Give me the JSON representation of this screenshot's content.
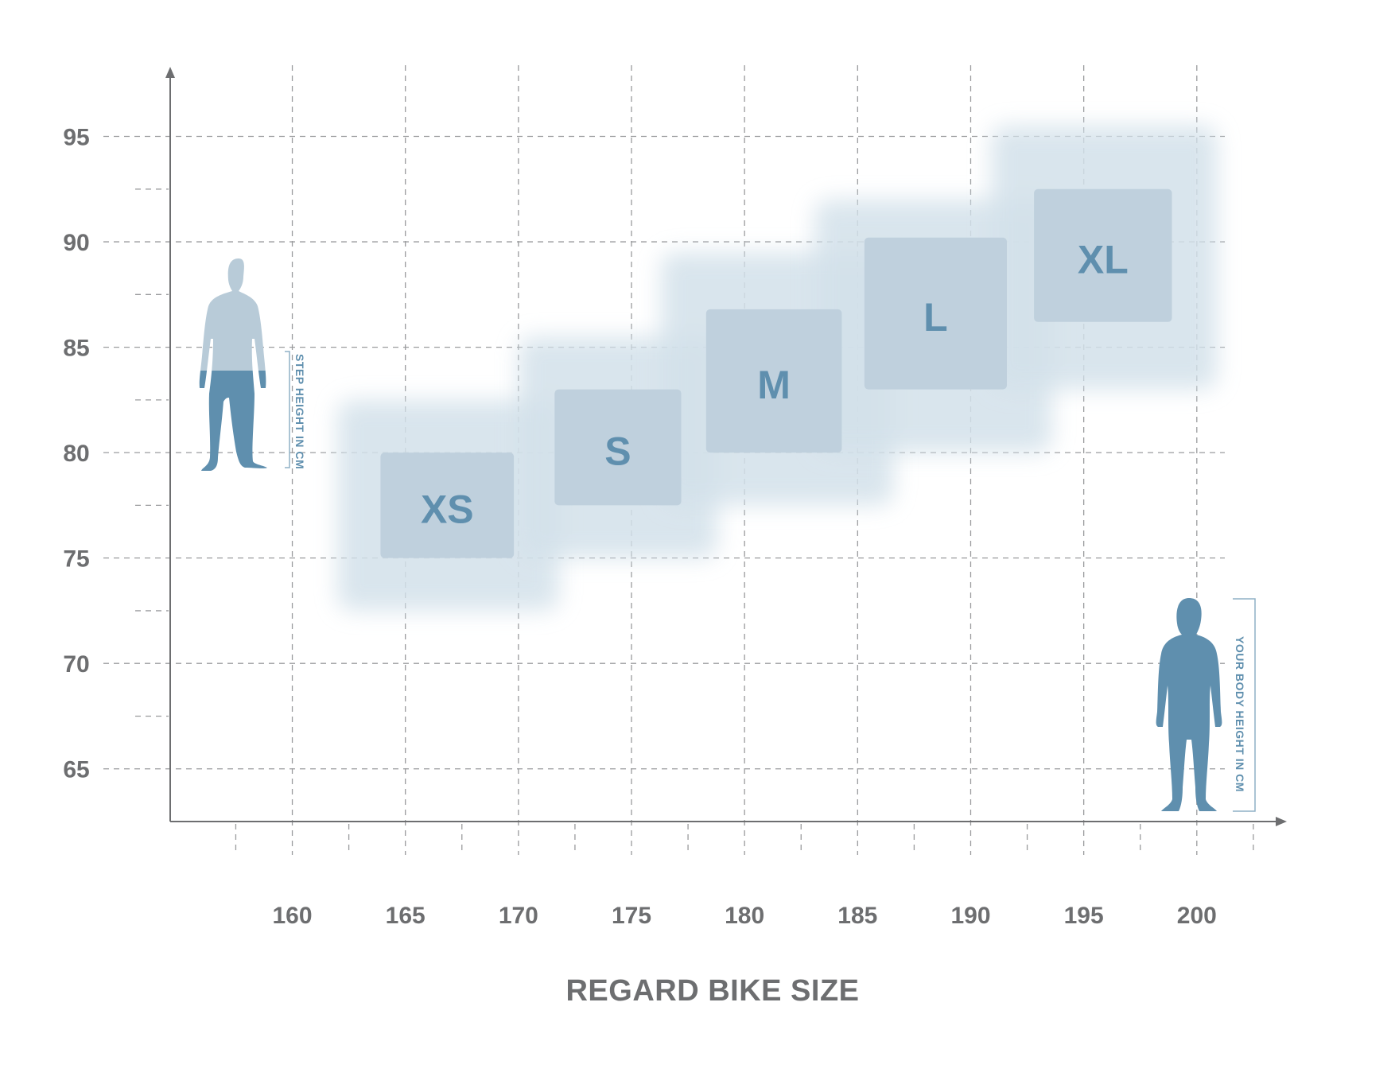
{
  "chart_data": {
    "type": "heatmap",
    "title": "REGARD BIKE SIZE",
    "xlabel": "YOUR BODY HEIGHT IN CM",
    "ylabel": "STEP HEIGHT IN CM",
    "x_ticks": [
      160,
      165,
      170,
      175,
      180,
      185,
      190,
      195,
      200
    ],
    "y_ticks": [
      65,
      70,
      75,
      80,
      85,
      90,
      95
    ],
    "xlim": [
      154.6,
      203.7
    ],
    "ylim": [
      62.5,
      98.0
    ],
    "grid": true,
    "sizes": [
      {
        "label": "XS",
        "x_range": [
          163.9,
          169.8
        ],
        "y_range": [
          75.0,
          80.0
        ],
        "glow_x": [
          162.0,
          171.8
        ],
        "glow_y": [
          72.5,
          82.5
        ]
      },
      {
        "label": "S",
        "x_range": [
          171.6,
          177.2
        ],
        "y_range": [
          77.5,
          83.0
        ],
        "glow_x": [
          170.0,
          178.8
        ],
        "glow_y": [
          75.0,
          85.5
        ]
      },
      {
        "label": "M",
        "x_range": [
          178.3,
          184.3
        ],
        "y_range": [
          80.0,
          86.8
        ],
        "glow_x": [
          176.3,
          186.6
        ],
        "glow_y": [
          77.5,
          89.5
        ]
      },
      {
        "label": "L",
        "x_range": [
          185.3,
          191.6
        ],
        "y_range": [
          83.0,
          90.2
        ],
        "glow_x": [
          183.1,
          193.6
        ],
        "glow_y": [
          80.0,
          92.0
        ]
      },
      {
        "label": "XL",
        "x_range": [
          192.8,
          198.9
        ],
        "y_range": [
          86.2,
          92.5
        ],
        "glow_x": [
          190.9,
          200.9
        ],
        "glow_y": [
          83.0,
          95.5
        ]
      }
    ],
    "colors": {
      "grid": "#9a9b9d",
      "axis": "#6d6e70",
      "tick_text": "#6d6e70",
      "box": "#bfd0dd",
      "glow": "#d3e1ea",
      "label": "#5f8fae",
      "figure_dark": "#5f8fae",
      "figure_light": "#b8cbd8"
    },
    "icons": [
      "person-figure-step-height-icon",
      "person-figure-body-height-icon"
    ]
  }
}
